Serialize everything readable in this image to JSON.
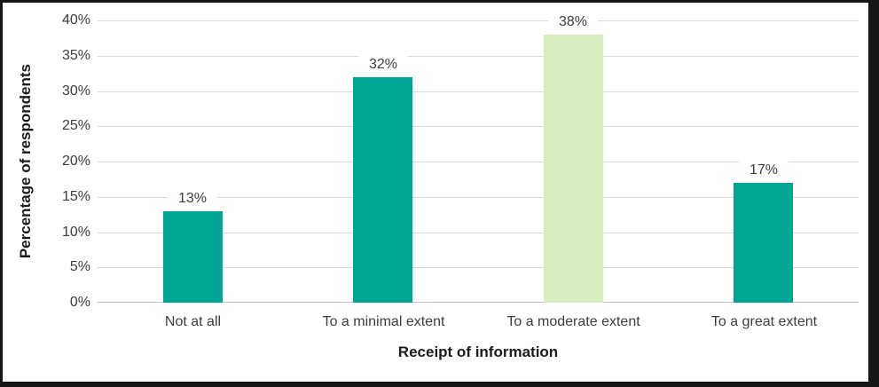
{
  "chart_data": {
    "type": "bar",
    "title": "",
    "xlabel": "Receipt of information",
    "ylabel": "Percentage of respondents",
    "categories": [
      "Not at all",
      "To a minimal extent",
      "To a moderate extent",
      "To a great extent"
    ],
    "values": [
      13,
      32,
      38,
      17
    ],
    "value_labels": [
      "13%",
      "32%",
      "38%",
      "17%"
    ],
    "bar_colors": [
      "#00A694",
      "#00A694",
      "#D8EEC0",
      "#00A694"
    ],
    "ylim": [
      0,
      40
    ],
    "ytick_step": 5,
    "ytick_labels": [
      "0%",
      "5%",
      "10%",
      "15%",
      "20%",
      "25%",
      "30%",
      "35%",
      "40%"
    ],
    "grid": true,
    "legend_position": "none",
    "colors": {
      "bar_teal": "#00A694",
      "bar_highlight_green": "#D8EEC0",
      "gridline": "#D9D9D9",
      "axis_line": "#C0C0C0",
      "label_text": "#3D3D3D",
      "title_text": "#1C1C1C",
      "frame_border": "#161616",
      "background": "#FFFFFF"
    }
  }
}
